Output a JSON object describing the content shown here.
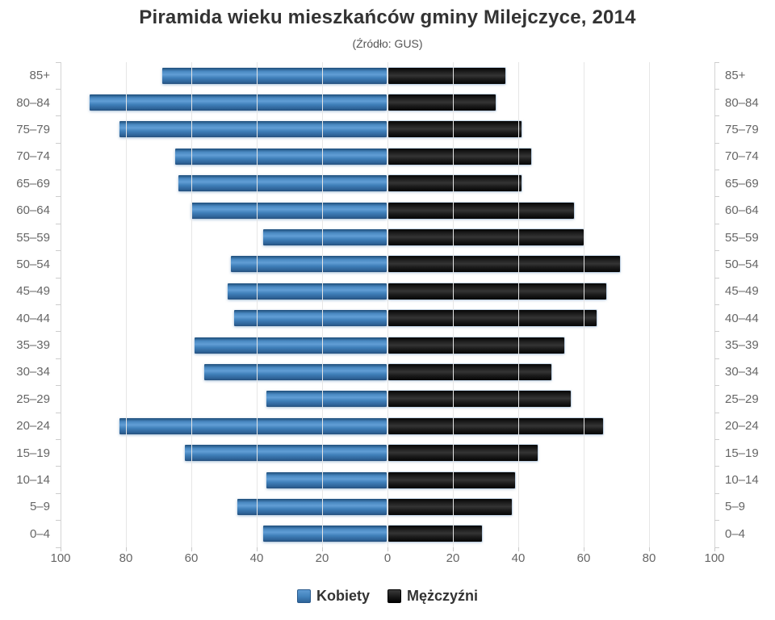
{
  "chart_data": {
    "type": "bar",
    "variant": "population-pyramid",
    "title": "Piramida wieku mieszkańców gminy Milejczyce, 2014",
    "subtitle": "(Źródło: GUS)",
    "categories": [
      "85+",
      "80–84",
      "75–79",
      "70–74",
      "65–69",
      "60–64",
      "55–59",
      "50–54",
      "45–49",
      "40–44",
      "35–39",
      "30–34",
      "25–29",
      "20–24",
      "15–19",
      "10–14",
      "5–9",
      "0–4"
    ],
    "series": [
      {
        "name": "Kobiety",
        "side": "left",
        "color": "#4181bb",
        "values": [
          69,
          91,
          82,
          65,
          64,
          60,
          38,
          48,
          49,
          47,
          59,
          56,
          37,
          82,
          62,
          37,
          46,
          38
        ]
      },
      {
        "name": "Mężczyźni",
        "side": "right",
        "color": "#111111",
        "values": [
          36,
          33,
          41,
          44,
          41,
          57,
          60,
          71,
          67,
          64,
          54,
          50,
          56,
          66,
          46,
          39,
          38,
          29
        ]
      }
    ],
    "x_axis": {
      "tick_labels": [
        "100",
        "80",
        "60",
        "40",
        "20",
        "0",
        "20",
        "40",
        "60",
        "80",
        "100"
      ],
      "max_each_side": 100,
      "tick_interval": 20
    },
    "grid": true,
    "legend_position": "bottom",
    "colors": {
      "women_bar": "#4181bb",
      "men_bar": "#111111",
      "axis_label": "#666666",
      "title_text": "#333333",
      "subtitle_text": "#555555",
      "gridline": "#e6e6e6",
      "axis_line": "#d4d4d4",
      "background": "#ffffff"
    }
  }
}
